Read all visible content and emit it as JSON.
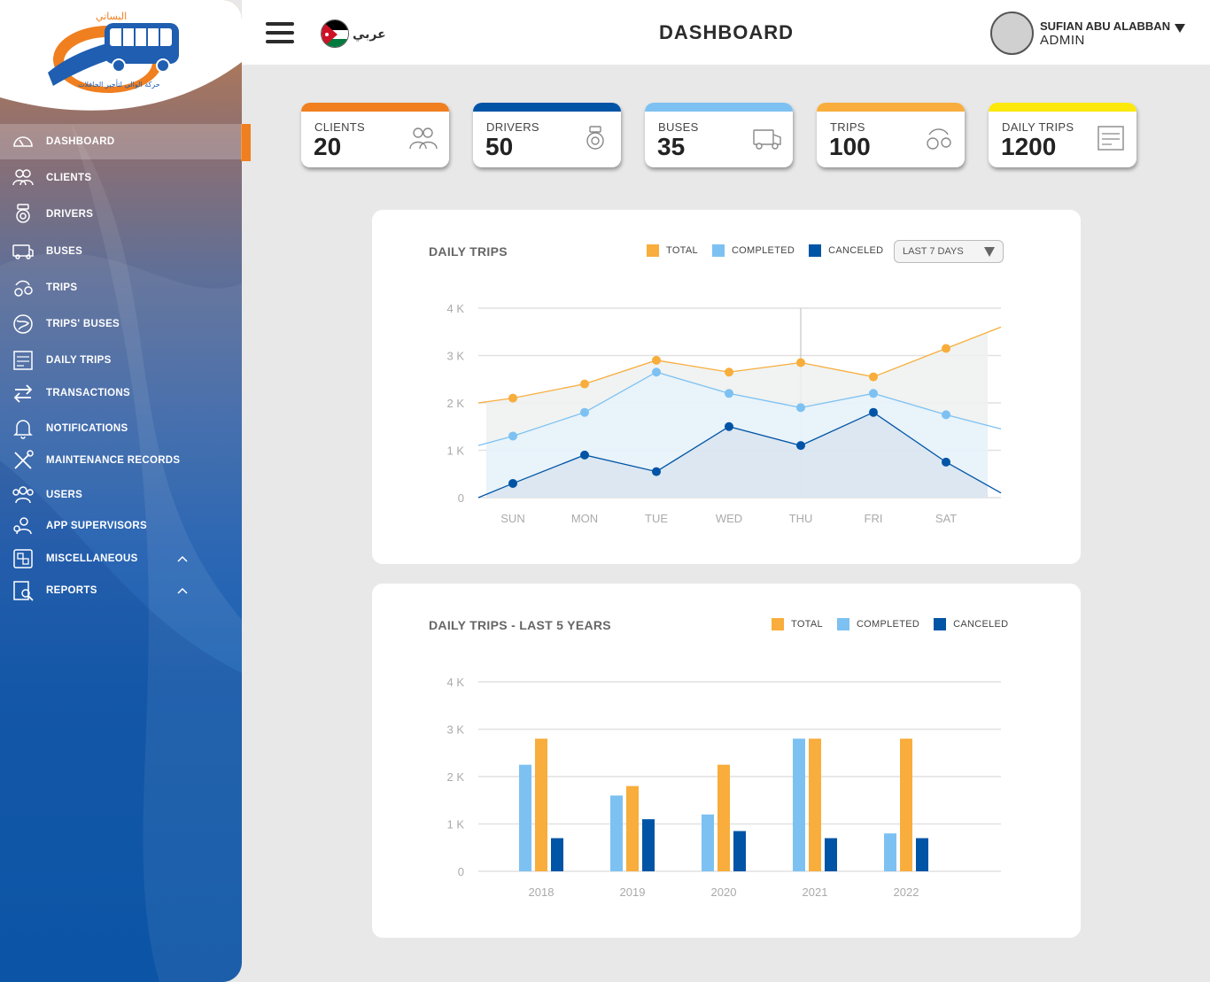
{
  "app": {
    "logo_text": "حركة الوالي لتأجير الحافلات",
    "logo_brand": "البساتي"
  },
  "colors": {
    "orange": "#f07f1f",
    "total": "#f8ad3c",
    "completed": "#7dc1f2",
    "canceled": "#0054a6",
    "dark_blue": "#0052a8"
  },
  "sidebar": {
    "items": [
      {
        "label": "DASHBOARD",
        "icon": "gauge-icon",
        "active": true
      },
      {
        "label": "CLIENTS",
        "icon": "users-icon"
      },
      {
        "label": "DRIVERS",
        "icon": "driver-icon"
      },
      {
        "label": "BUSES",
        "icon": "bus-icon"
      },
      {
        "label": "TRIPS",
        "icon": "trips-icon"
      },
      {
        "label": "TRIPS' BUSES",
        "icon": "trips-buses-icon"
      },
      {
        "label": "DAILY TRIPS",
        "icon": "daily-trips-icon"
      },
      {
        "label": "TRANSACTIONS",
        "icon": "transactions-icon"
      },
      {
        "label": "NOTIFICATIONS",
        "icon": "bell-icon"
      },
      {
        "label": "MAINTENANCE RECORDS",
        "icon": "tools-icon"
      },
      {
        "label": "USERS",
        "icon": "users-group-icon"
      },
      {
        "label": "APP SUPERVISORS",
        "icon": "supervisor-icon"
      },
      {
        "label": "MISCELLANEOUS",
        "icon": "misc-icon",
        "chevron": "chevron-up-icon"
      },
      {
        "label": "REPORTS",
        "icon": "reports-icon",
        "chevron": "chevron-up-icon"
      }
    ]
  },
  "header": {
    "title": "DASHBOARD",
    "language_label": "عربي",
    "user_name": "SUFIAN ABU ALABBAN",
    "user_role": "ADMIN"
  },
  "stats": [
    {
      "label": "CLIENTS",
      "value": "20",
      "color": "#f07f1f",
      "icon": "clients-icon"
    },
    {
      "label": "DRIVERS",
      "value": "50",
      "color": "#0054a6",
      "icon": "driver-icon"
    },
    {
      "label": "BUSES",
      "value": "35",
      "color": "#7dc1f2",
      "icon": "bus-icon"
    },
    {
      "label": "TRIPS",
      "value": "100",
      "color": "#f8ad3c",
      "icon": "trips-icon"
    },
    {
      "label": "DAILY TRIPS",
      "value": "1200",
      "color": "#fce80a",
      "icon": "daily-trips-icon"
    }
  ],
  "daily_panel": {
    "title": "DAILY TRIPS",
    "legend": [
      "TOTAL",
      "COMPLETED",
      "CANCELED"
    ],
    "dropdown": "LAST 7 DAYS"
  },
  "yearly_panel": {
    "title": "DAILY TRIPS - LAST 5 YEARS",
    "legend": [
      "TOTAL",
      "COMPLETED",
      "CANCELED"
    ]
  },
  "chart_data": [
    {
      "type": "area",
      "title": "DAILY TRIPS",
      "categories": [
        "SUN",
        "MON",
        "TUE",
        "WED",
        "THU",
        "FRI",
        "SAT"
      ],
      "y_ticks": [
        "0",
        "1 K",
        "2 K",
        "3 K",
        "4 K"
      ],
      "ylim": [
        0,
        4000
      ],
      "series": [
        {
          "name": "TOTAL",
          "values": [
            2100,
            2400,
            2900,
            2650,
            2850,
            2550,
            3150
          ]
        },
        {
          "name": "COMPLETED",
          "values": [
            1300,
            1800,
            2650,
            2200,
            1900,
            2200,
            1750
          ]
        },
        {
          "name": "CANCELED",
          "values": [
            300,
            900,
            550,
            1500,
            1100,
            1800,
            750
          ]
        }
      ],
      "grid": true,
      "legend": "top-right"
    },
    {
      "type": "bar",
      "title": "DAILY TRIPS - LAST 5 YEARS",
      "categories": [
        "2018",
        "2019",
        "2020",
        "2021",
        "2022"
      ],
      "y_ticks": [
        "0",
        "1 K",
        "2 K",
        "3 K",
        "4 K"
      ],
      "ylim": [
        0,
        4000
      ],
      "series": [
        {
          "name": "COMPLETED",
          "values": [
            2250,
            1600,
            1200,
            2800,
            800
          ]
        },
        {
          "name": "TOTAL",
          "values": [
            2800,
            1800,
            2250,
            2800,
            2800
          ]
        },
        {
          "name": "CANCELED",
          "values": [
            700,
            1100,
            850,
            700,
            700
          ]
        }
      ],
      "grid": true,
      "legend": "top-right"
    }
  ]
}
